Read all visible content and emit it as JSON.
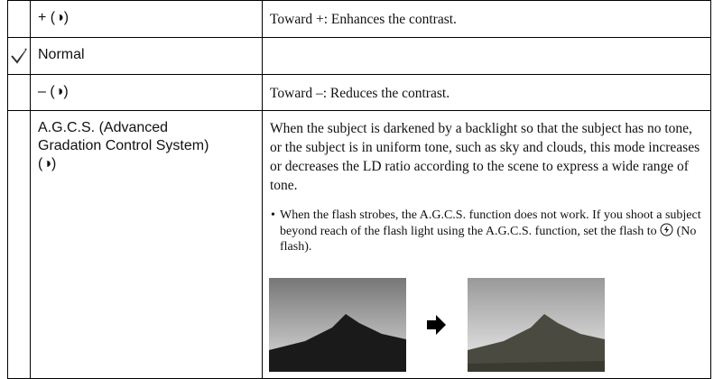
{
  "table": {
    "rows": [
      {
        "setting": "+ (◑)",
        "description": "Toward +: Enhances the contrast."
      },
      {
        "setting": "Normal"
      },
      {
        "setting": "– (◑)",
        "description": "Toward –: Reduces the contrast."
      },
      {
        "setting": "A.G.C.S. (Advanced Gradation Control System) (◑)",
        "description": "When the subject is darkened by a backlight so that the subject has no tone, or the subject is in uniform tone, such as sky and clouds, this mode increases or decreases the LD ratio according to the scene to express a wide range of tone.",
        "note_before_icon": "When the flash strobes, the A.G.C.S. function does not work. If you shoot a subject beyond reach of the flash light using the A.G.C.S. function, set the flash to",
        "note_after_icon": "(No flash)."
      }
    ]
  }
}
